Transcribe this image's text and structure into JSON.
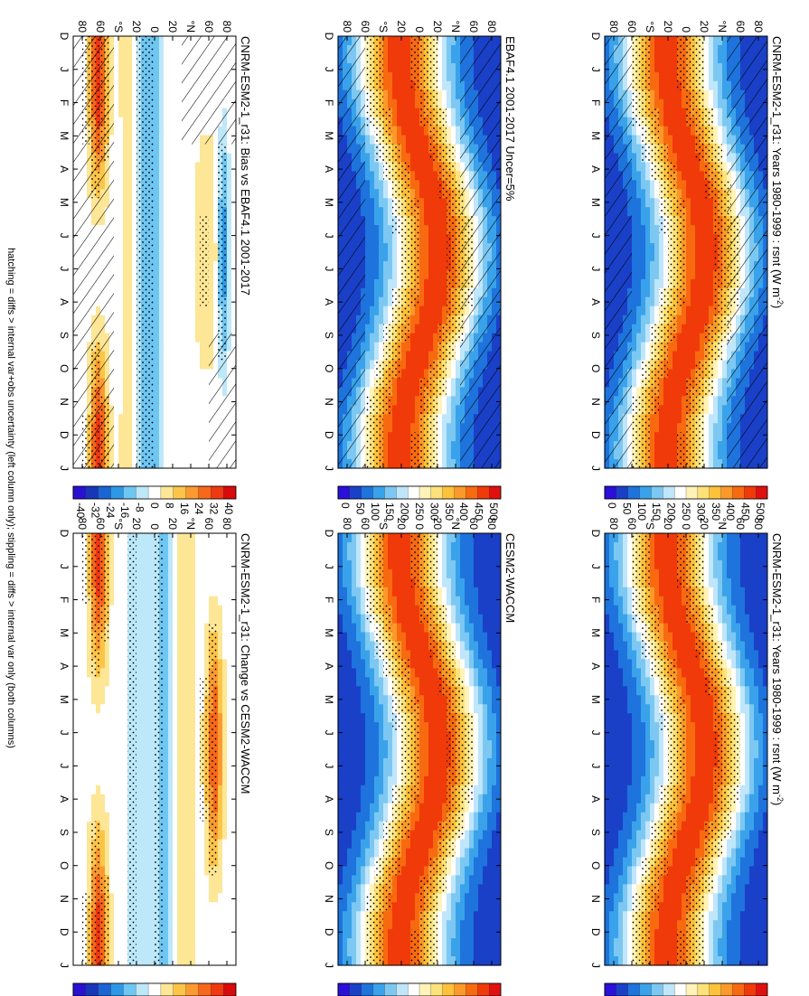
{
  "chart_data": [
    {
      "type": "heatmap",
      "title": "CNRM-ESM2-1_r31: Years 1980-1999 : rsnt (W m",
      "title_sup": "-2",
      "title_end": ")",
      "panel": "model-climatology",
      "overlay": [
        "hatching",
        "stippling"
      ],
      "field": "rsnt",
      "colorbar": [
        "500",
        "450",
        "400",
        "350",
        "300",
        "250",
        "200",
        "150",
        "100",
        "50",
        "0"
      ]
    },
    {
      "type": "heatmap",
      "title": "CNRM-ESM2-1_r31: Years 1980-1999 : rsnt (W m",
      "title_sup": "-2",
      "title_end": ")",
      "panel": "model-climatology-ref",
      "overlay": [
        "stippling"
      ],
      "field": "rsnt",
      "colorbar": [
        "500",
        "450",
        "400",
        "350",
        "300",
        "250",
        "200",
        "150",
        "100",
        "50",
        "0"
      ]
    },
    {
      "type": "heatmap",
      "title": "EBAF4.1 2001-2017 Uncer=5%",
      "panel": "obs-climatology",
      "overlay": [
        "hatching",
        "stippling"
      ],
      "field": "rsnt",
      "colorbar": [
        "500",
        "450",
        "400",
        "350",
        "300",
        "250",
        "200",
        "150",
        "100",
        "50",
        "0"
      ]
    },
    {
      "type": "heatmap",
      "title": "CESM2-WACCM",
      "panel": "ref-model-climatology",
      "overlay": [
        "stippling"
      ],
      "field": "rsnt",
      "colorbar": [
        "500",
        "450",
        "400",
        "350",
        "300",
        "250",
        "200",
        "150",
        "100",
        "50",
        "0"
      ]
    },
    {
      "type": "heatmap",
      "title": "CNRM-ESM2-1_r31: Bias vs EBAF4.1 2001-2017",
      "panel": "bias",
      "overlay": [
        "hatching",
        "stippling"
      ],
      "field": "rsnt difference",
      "colorbar": [
        "40",
        "32",
        "24",
        "16",
        "8",
        "0",
        "-8",
        "-16",
        "-24",
        "-32",
        "-40"
      ]
    },
    {
      "type": "heatmap",
      "title": "CNRM-ESM2-1_r31: Change vs CESM2-WACCM",
      "panel": "change",
      "overlay": [
        "stippling"
      ],
      "field": "rsnt difference",
      "colorbar": [
        "40",
        "32",
        "24",
        "16",
        "8",
        "0",
        "-8",
        "-16",
        "-24",
        "-32",
        "-40"
      ]
    }
  ],
  "axes": {
    "months": [
      "D",
      "J",
      "F",
      "M",
      "A",
      "M",
      "J",
      "J",
      "A",
      "S",
      "O",
      "N",
      "D",
      "J"
    ],
    "latitudes": [
      "80",
      "60",
      "°N",
      "20",
      "0",
      "20",
      "°S",
      "60",
      "80"
    ]
  },
  "colors": {
    "absolute_scale": [
      "#e01010",
      "#f03a0a",
      "#f86a10",
      "#fb9a2a",
      "#fdc23a",
      "#fde27a",
      "#fff3b8",
      "#ffffff",
      "#bfe6fa",
      "#7cc8f2",
      "#3aa2ea",
      "#1e73dc",
      "#1a40c8",
      "#2a10d8"
    ],
    "difference_scale": [
      "#d80a0a",
      "#f03812",
      "#f8681a",
      "#fb9a30",
      "#fdc548",
      "#fde696",
      "#ffffff",
      "#bde8fa",
      "#6ec6f2",
      "#2e98e6",
      "#1a64d4",
      "#1836b8",
      "#2a10d0"
    ]
  },
  "footnote": "hatching = diffs > internal var+obs uncertainty (left column only); stippling = diffs > internal var only (both columns)"
}
